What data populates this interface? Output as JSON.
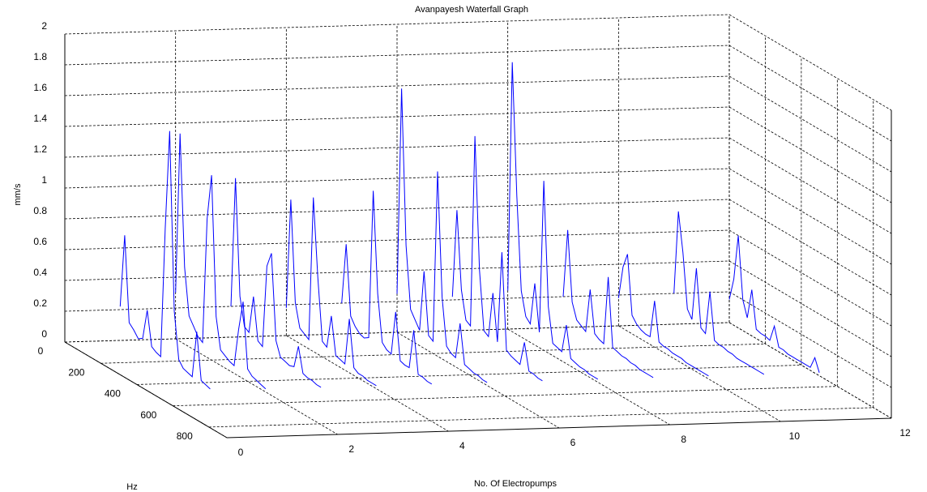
{
  "chart_data": {
    "type": "waterfall",
    "title": "Avanpayesh Waterfall Graph",
    "xlabel": "No. Of Electropumps",
    "ylabel": "Hz",
    "zlabel": "mm/s",
    "color": "#0000ff",
    "grid": true,
    "xlim": [
      0,
      12
    ],
    "xticks": [
      0,
      2,
      4,
      6,
      8,
      10,
      12
    ],
    "ylim": [
      0,
      900
    ],
    "yticks": [
      0,
      200,
      400,
      600,
      800
    ],
    "zlim": [
      0,
      2
    ],
    "zticks": [
      0,
      0.2,
      0.4,
      0.6,
      0.8,
      1,
      1.2,
      1.4,
      1.6,
      1.8,
      2
    ],
    "x": [
      0,
      25,
      50,
      75,
      100,
      125,
      150,
      175,
      200,
      225,
      250,
      275,
      300,
      325,
      350,
      375,
      400,
      425,
      450,
      475,
      500
    ],
    "series": [
      {
        "pump": 1,
        "values": [
          0.22,
          0.7,
          0.15,
          0.12,
          0.08,
          0.1,
          0.3,
          0.08,
          0.06,
          0.05,
          0.9,
          1.55,
          0.4,
          0.1,
          0.06,
          0.05,
          0.04,
          0.35,
          0.05,
          0.04,
          0.03
        ]
      },
      {
        "pump": 2,
        "values": [
          0.3,
          1.35,
          0.5,
          0.2,
          0.15,
          0.1,
          0.08,
          0.9,
          1.2,
          0.3,
          0.1,
          0.08,
          0.06,
          0.05,
          0.3,
          0.5,
          0.08,
          0.05,
          0.04,
          0.03,
          0.02
        ]
      },
      {
        "pump": 3,
        "values": [
          0.2,
          1.05,
          0.3,
          0.12,
          0.1,
          0.35,
          0.08,
          0.06,
          0.6,
          0.7,
          0.15,
          0.06,
          0.05,
          0.04,
          0.05,
          0.2,
          0.04,
          0.03,
          0.03,
          0.02,
          0.02
        ]
      },
      {
        "pump": 4,
        "values": [
          0.18,
          0.9,
          0.25,
          0.1,
          0.08,
          0.06,
          1.0,
          0.5,
          0.1,
          0.08,
          0.3,
          0.06,
          0.05,
          0.04,
          0.35,
          0.05,
          0.03,
          0.03,
          0.02,
          0.02,
          0.02
        ]
      },
      {
        "pump": 5,
        "values": [
          0.2,
          0.6,
          0.15,
          0.1,
          0.07,
          0.06,
          0.08,
          1.05,
          0.4,
          0.1,
          0.07,
          0.06,
          0.35,
          0.05,
          0.04,
          0.04,
          0.3,
          0.03,
          0.03,
          0.02,
          0.02
        ]
      },
      {
        "pump": 6,
        "values": [
          0.25,
          1.6,
          0.6,
          0.2,
          0.15,
          0.1,
          0.5,
          0.1,
          0.08,
          1.2,
          0.4,
          0.1,
          0.07,
          0.06,
          0.3,
          0.05,
          0.04,
          0.03,
          0.03,
          0.02,
          0.02
        ]
      },
      {
        "pump": 7,
        "values": [
          0.22,
          0.8,
          0.3,
          0.12,
          0.1,
          1.35,
          0.5,
          0.12,
          0.1,
          0.4,
          0.1,
          0.7,
          0.08,
          0.06,
          0.05,
          0.04,
          0.2,
          0.03,
          0.03,
          0.02,
          0.02
        ]
      },
      {
        "pump": 8,
        "values": [
          0.25,
          1.75,
          0.9,
          0.3,
          0.15,
          0.12,
          0.4,
          0.1,
          1.1,
          0.3,
          0.08,
          0.07,
          0.06,
          0.25,
          0.05,
          0.04,
          0.03,
          0.03,
          0.02,
          0.02,
          0.02
        ]
      },
      {
        "pump": 9,
        "values": [
          0.2,
          0.65,
          0.2,
          0.1,
          0.08,
          0.06,
          0.35,
          0.08,
          0.06,
          0.05,
          0.5,
          0.06,
          0.05,
          0.04,
          0.04,
          0.03,
          0.03,
          0.02,
          0.02,
          0.02,
          0.02
        ]
      },
      {
        "pump": 10,
        "values": [
          0.18,
          0.4,
          0.5,
          0.12,
          0.08,
          0.06,
          0.05,
          0.05,
          0.3,
          0.05,
          0.04,
          0.04,
          0.03,
          0.03,
          0.03,
          0.02,
          0.02,
          0.02,
          0.02,
          0.02,
          0.02
        ]
      },
      {
        "pump": 11,
        "values": [
          0.2,
          0.75,
          0.5,
          0.15,
          0.1,
          0.45,
          0.08,
          0.06,
          0.35,
          0.05,
          0.04,
          0.04,
          0.03,
          0.03,
          0.02,
          0.02,
          0.02,
          0.02,
          0.02,
          0.02,
          0.02
        ]
      },
      {
        "pump": 12,
        "values": [
          0.15,
          0.3,
          0.6,
          0.2,
          0.1,
          0.3,
          0.06,
          0.05,
          0.05,
          0.04,
          0.15,
          0.03,
          0.03,
          0.02,
          0.02,
          0.02,
          0.02,
          0.02,
          0.02,
          0.1,
          0.02
        ]
      }
    ]
  }
}
